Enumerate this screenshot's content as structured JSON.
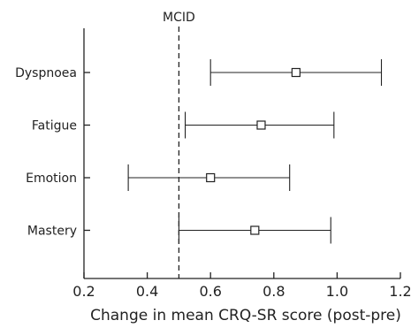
{
  "chart_data": {
    "type": "forest",
    "title": "",
    "xlabel": "Change in mean CRQ-SR score (post-pre)",
    "ylabel": "",
    "xlim": [
      0.2,
      1.2
    ],
    "xticks": [
      "0.2",
      "0.4",
      "0.6",
      "0.8",
      "1.0",
      "1.2"
    ],
    "grid": false,
    "reference_line": {
      "label": "MCID",
      "x": 0.5,
      "style": "dashed"
    },
    "categories": [
      "Dyspnoea",
      "Fatigue",
      "Emotion",
      "Mastery"
    ],
    "values": [
      0.87,
      0.76,
      0.6,
      0.74
    ],
    "ci_lower": [
      0.6,
      0.52,
      0.34,
      0.5
    ],
    "ci_upper": [
      1.14,
      0.99,
      0.85,
      0.98
    ]
  }
}
